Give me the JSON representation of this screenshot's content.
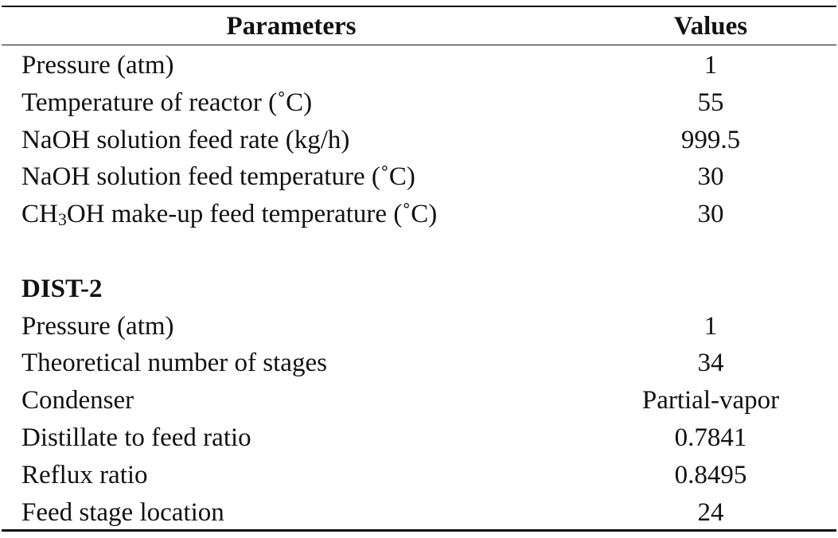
{
  "header": {
    "parameter": "Parameters",
    "value": "Values"
  },
  "sections": [
    {
      "rows": [
        {
          "parameter": "Pressure (atm)",
          "value": "1"
        },
        {
          "parameter": "Temperature of reactor (˚C)",
          "value": "55"
        },
        {
          "parameter": "NaOH solution feed rate (kg/h)",
          "value": "999.5"
        },
        {
          "parameter": "NaOH solution feed temperature (˚C)",
          "value": "30"
        },
        {
          "parameter": [
            "CH",
            "3",
            "OH make-up feed temperature (˚C)"
          ],
          "value": "30"
        }
      ]
    },
    {
      "title": "DIST-2",
      "rows": [
        {
          "parameter": "Pressure (atm)",
          "value": "1"
        },
        {
          "parameter": "Theoretical number of stages",
          "value": "34"
        },
        {
          "parameter": "Condenser",
          "value": "Partial-vapor"
        },
        {
          "parameter": "Distillate to feed ratio",
          "value": "0.7841"
        },
        {
          "parameter": "Reflux ratio",
          "value": "0.8495"
        },
        {
          "parameter": "Feed stage location",
          "value": "24"
        }
      ]
    }
  ]
}
